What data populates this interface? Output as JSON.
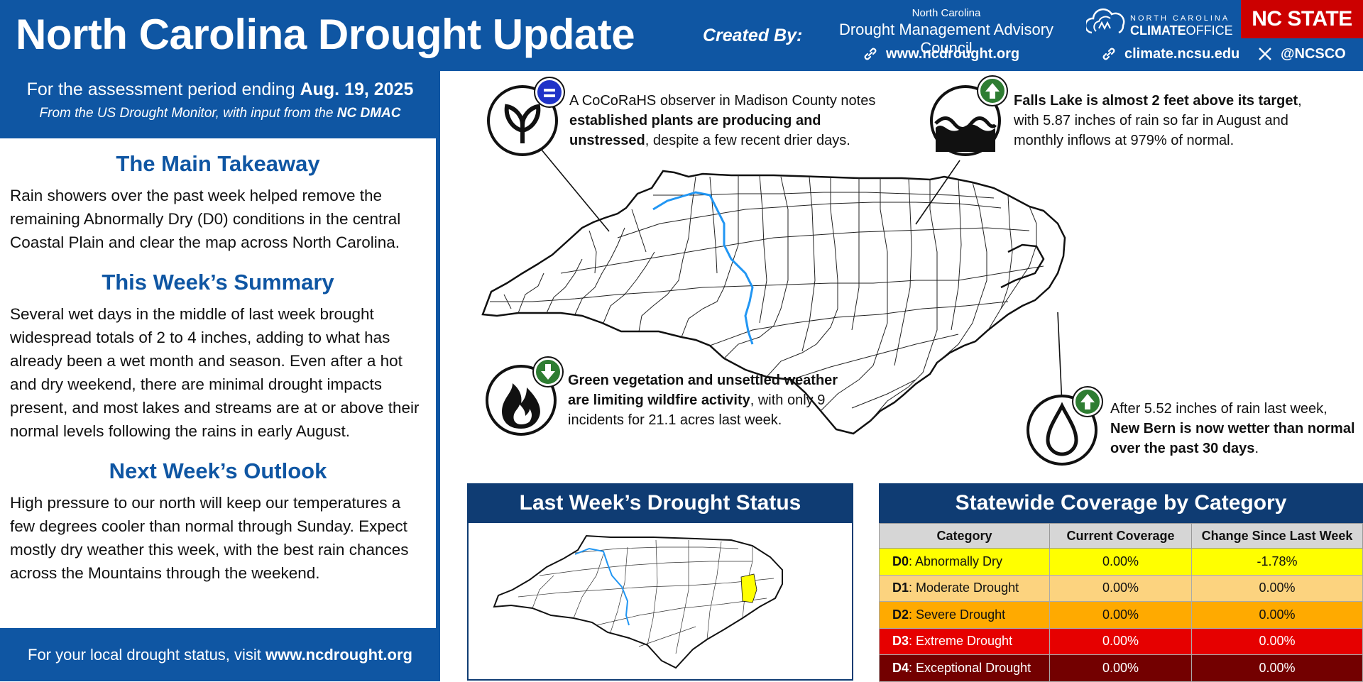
{
  "header": {
    "title": "North Carolina Drought Update",
    "created_by": "Created By:",
    "dmac_small": "North Carolina",
    "dmac_big": "Drought Management Advisory Council",
    "link1": "www.ncdrought.org",
    "link2": "climate.ncsu.edu",
    "social": "@NCSCO",
    "climate_logo_top": "NORTH CAROLINA",
    "climate_logo_bottom_a": "CLIMATE",
    "climate_logo_bottom_b": "OFFICE",
    "ncstate": "NC STATE"
  },
  "sidebar": {
    "period_prefix": "For the assessment period ending",
    "period_date": "Aug. 19, 2025",
    "from_prefix": "From the US Drought Monitor, with input from the",
    "from_bold": "NC DMAC",
    "takeaway_title": "The Main Takeaway",
    "takeaway_text": "Rain showers over the past week helped remove the remaining Abnormally Dry (D0) conditions in the central Coastal Plain and clear the map across North Carolina.",
    "summary_title": "This Week’s Summary",
    "summary_text": "Several wet days in the middle of last week brought widespread totals of 2 to 4 inches, adding to what has already been a wet month and season. Even after a hot and dry weekend, there are minimal drought impacts present, and most lakes and streams are at or above their normal levels following the rains in early August.",
    "outlook_title": "Next Week’s Outlook",
    "outlook_text": "High pressure to our north will keep our temperatures a few degrees cooler than normal through Sunday. Expect mostly dry weather this week, with the best rain chances across the Mountains through the weekend.",
    "footer_prefix": "For your local drought status, visit",
    "footer_link": "www.ncdrought.org"
  },
  "callouts": {
    "plants_a": "A CoCoRaHS observer in Madison County notes ",
    "plants_b": "established plants are producing and unstressed",
    "plants_c": ", despite a few recent drier days.",
    "lake_a": "Falls Lake is almost 2 feet above its target",
    "lake_b": ", with 5.87 inches of rain so far in August and monthly inflows at 979% of normal.",
    "fire_a": "Green vegetation and unsettled weather are limiting wildfire activity",
    "fire_b": ", with only 9 incidents for 21.1 acres last week.",
    "rain_a": "After 5.52 inches of rain last week, ",
    "rain_b": "New Bern is now wetter than normal over the past 30 days",
    "rain_c": "."
  },
  "icons": {
    "plants": "plant-sprout-icon",
    "plants_badge": "equals-icon",
    "lake": "water-waves-icon",
    "lake_badge": "arrow-up-icon",
    "fire": "fire-icon",
    "fire_badge": "arrow-down-icon",
    "rain": "water-drop-icon",
    "rain_badge": "arrow-up-icon"
  },
  "last_week": {
    "title": "Last Week’s Drought Status"
  },
  "coverage": {
    "title": "Statewide Coverage by Category",
    "headers": [
      "Category",
      "Current Coverage",
      "Change Since Last Week"
    ],
    "rows": [
      {
        "code": "D0",
        "name": ": Abnormally Dry",
        "current": "0.00%",
        "change": "-1.78%",
        "bg": "#ffff00",
        "fg": "#111111"
      },
      {
        "code": "D1",
        "name": ": Moderate Drought",
        "current": "0.00%",
        "change": "0.00%",
        "bg": "#fcd37f",
        "fg": "#111111"
      },
      {
        "code": "D2",
        "name": ": Severe Drought",
        "current": "0.00%",
        "change": "0.00%",
        "bg": "#ffaa00",
        "fg": "#111111"
      },
      {
        "code": "D3",
        "name": ": Extreme Drought",
        "current": "0.00%",
        "change": "0.00%",
        "bg": "#e60000",
        "fg": "#ffffff"
      },
      {
        "code": "D4",
        "name": ": Exceptional Drought",
        "current": "0.00%",
        "change": "0.00%",
        "bg": "#730000",
        "fg": "#ffffff"
      }
    ]
  },
  "colors": {
    "brand_blue": "#0f56a3",
    "panel_navy": "#0f3c73",
    "ncstate_red": "#cc0000",
    "badge_green": "#2e7d32",
    "badge_blue": "#1f33c8",
    "river_blue": "#2196f3",
    "d0_yellow": "#ffff00"
  }
}
